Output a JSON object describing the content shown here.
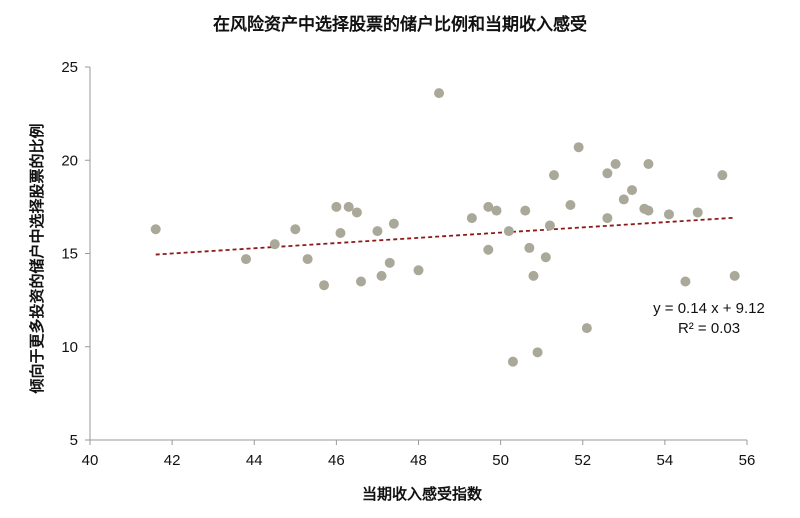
{
  "chart_data": {
    "type": "scatter",
    "title": "在风险资产中选择股票的储户比例和当期收入感受",
    "xlabel": "当期收入感受指数",
    "ylabel": "倾向于更多投资的储户中选择股票的比例",
    "xlim": [
      40,
      56
    ],
    "ylim": [
      5,
      25
    ],
    "x_ticks": [
      40,
      42,
      44,
      46,
      48,
      50,
      52,
      54,
      56
    ],
    "y_ticks": [
      5,
      10,
      15,
      20,
      25
    ],
    "grid": false,
    "legend": "none",
    "point_color": "#aaa999",
    "trendline": {
      "slope": 0.14,
      "intercept": 9.12,
      "color": "#8b1a1a",
      "style": "dashed",
      "equation": "y = 0.14 x + 9.12",
      "r_squared": "R² = 0.03"
    },
    "points": [
      {
        "x": 41.6,
        "y": 16.3
      },
      {
        "x": 43.8,
        "y": 14.7
      },
      {
        "x": 44.5,
        "y": 15.5
      },
      {
        "x": 45.0,
        "y": 16.3
      },
      {
        "x": 45.3,
        "y": 14.7
      },
      {
        "x": 45.7,
        "y": 13.3
      },
      {
        "x": 46.0,
        "y": 17.5
      },
      {
        "x": 46.1,
        "y": 16.1
      },
      {
        "x": 46.3,
        "y": 17.5
      },
      {
        "x": 46.5,
        "y": 17.2
      },
      {
        "x": 46.6,
        "y": 13.5
      },
      {
        "x": 47.0,
        "y": 16.2
      },
      {
        "x": 47.1,
        "y": 13.8
      },
      {
        "x": 47.3,
        "y": 14.5
      },
      {
        "x": 47.4,
        "y": 16.6
      },
      {
        "x": 48.0,
        "y": 14.1
      },
      {
        "x": 48.5,
        "y": 23.6
      },
      {
        "x": 49.3,
        "y": 16.9
      },
      {
        "x": 49.7,
        "y": 17.5
      },
      {
        "x": 49.7,
        "y": 15.2
      },
      {
        "x": 49.9,
        "y": 17.3
      },
      {
        "x": 50.2,
        "y": 16.2
      },
      {
        "x": 50.3,
        "y": 9.2
      },
      {
        "x": 50.6,
        "y": 17.3
      },
      {
        "x": 50.7,
        "y": 15.3
      },
      {
        "x": 50.8,
        "y": 13.8
      },
      {
        "x": 50.9,
        "y": 9.7
      },
      {
        "x": 51.1,
        "y": 14.8
      },
      {
        "x": 51.2,
        "y": 16.5
      },
      {
        "x": 51.3,
        "y": 19.2
      },
      {
        "x": 51.7,
        "y": 17.6
      },
      {
        "x": 51.9,
        "y": 20.7
      },
      {
        "x": 52.1,
        "y": 11.0
      },
      {
        "x": 52.6,
        "y": 19.3
      },
      {
        "x": 52.6,
        "y": 16.9
      },
      {
        "x": 52.8,
        "y": 19.8
      },
      {
        "x": 53.0,
        "y": 17.9
      },
      {
        "x": 53.2,
        "y": 18.4
      },
      {
        "x": 53.5,
        "y": 17.4
      },
      {
        "x": 53.6,
        "y": 19.8
      },
      {
        "x": 53.6,
        "y": 17.3
      },
      {
        "x": 54.1,
        "y": 17.1
      },
      {
        "x": 54.5,
        "y": 13.5
      },
      {
        "x": 54.8,
        "y": 17.2
      },
      {
        "x": 55.4,
        "y": 19.2
      },
      {
        "x": 55.7,
        "y": 13.8
      }
    ]
  }
}
